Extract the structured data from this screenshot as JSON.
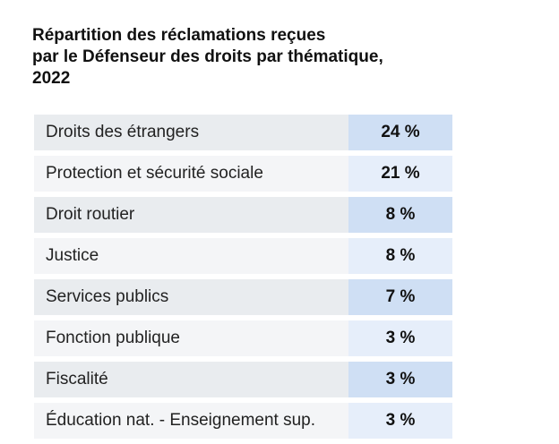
{
  "title": {
    "line1": "Répartition des réclamations reçues",
    "line2": "par le Défenseur des droits par thématique,",
    "line3": "2022"
  },
  "rows": [
    {
      "label": "Droits des étrangers",
      "value": "24 %"
    },
    {
      "label": "Protection et sécurité sociale",
      "value": "21 %"
    },
    {
      "label": "Droit routier",
      "value": "8 %"
    },
    {
      "label": "Justice",
      "value": "8 %"
    },
    {
      "label": "Services publics",
      "value": "7 %"
    },
    {
      "label": "Fonction publique",
      "value": "3 %"
    },
    {
      "label": "Fiscalité",
      "value": "3 %"
    },
    {
      "label": "Éducation nat. - Enseignement sup.",
      "value": "3 %"
    }
  ]
}
